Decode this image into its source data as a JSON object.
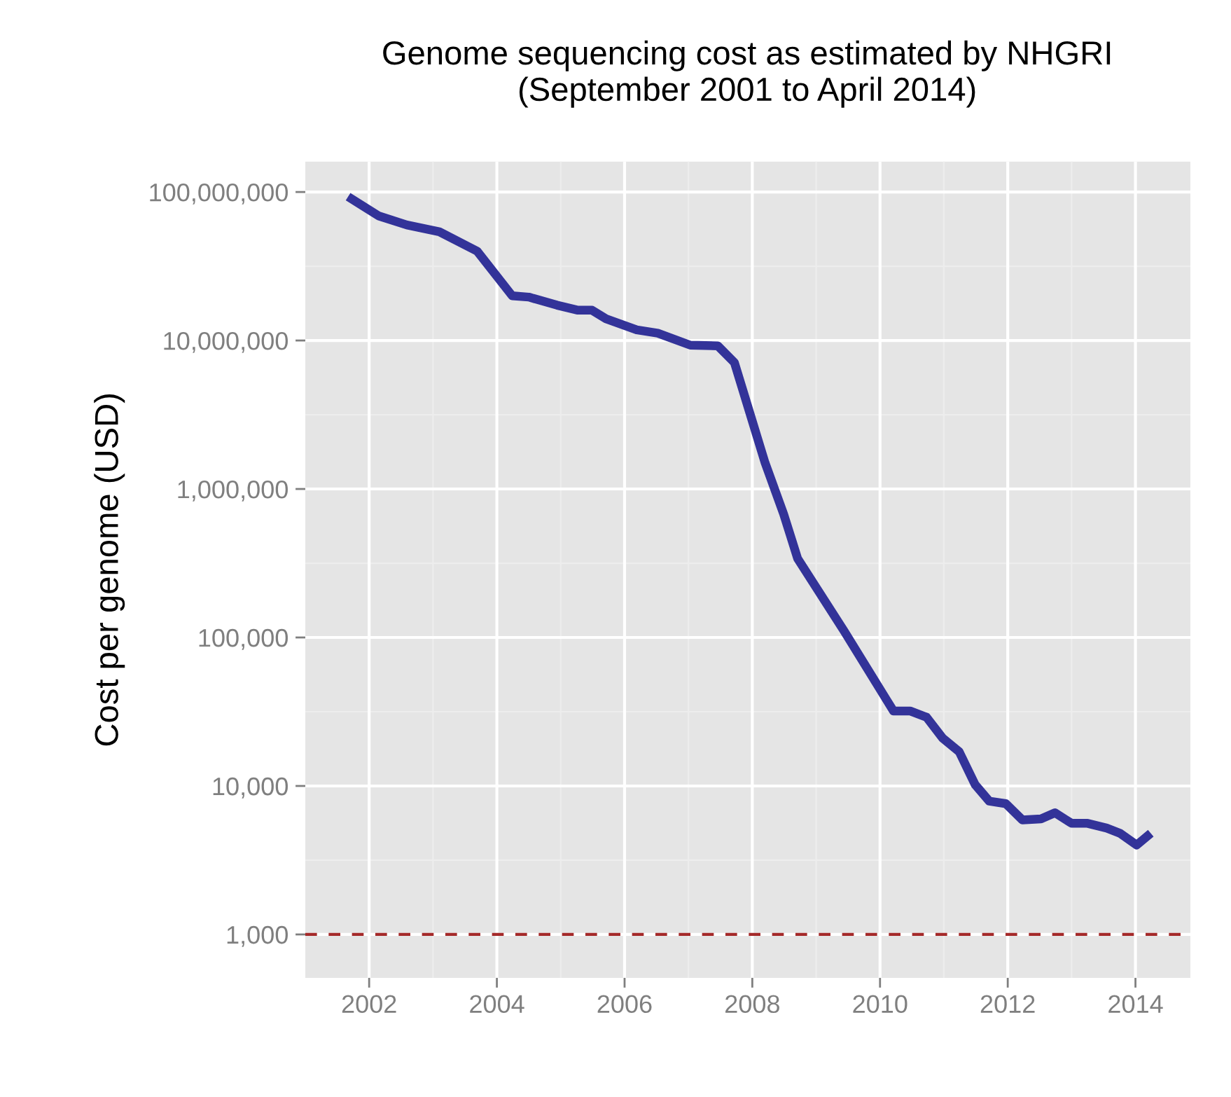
{
  "chart_data": {
    "type": "line",
    "title": "Genome sequencing cost as estimated by NHGRI",
    "subtitle": "(September 2001 to April 2014)",
    "ylabel": "Cost per genome (USD)",
    "x": [
      2001.67,
      2002.15,
      2002.59,
      2003.1,
      2003.69,
      2004.24,
      2004.5,
      2004.94,
      2005.27,
      2005.49,
      2005.71,
      2006.19,
      2006.52,
      2007.03,
      2007.46,
      2007.72,
      2008.2,
      2008.49,
      2008.71,
      2009.44,
      2010.21,
      2010.47,
      2010.73,
      2010.98,
      2011.24,
      2011.49,
      2011.71,
      2011.97,
      2012.23,
      2012.52,
      2012.74,
      2013.0,
      2013.25,
      2013.55,
      2013.76,
      2014.02,
      2014.24
    ],
    "series": [
      {
        "color": "#333399",
        "values": [
          93000000,
          69000000,
          60000000,
          54000000,
          40000000,
          20000000,
          19600000,
          17300000,
          16000000,
          16000000,
          14000000,
          11800000,
          11200000,
          9300000,
          9200000,
          7100000,
          1500000,
          680000,
          340000,
          110000,
          32000,
          32000,
          29000,
          21000,
          17000,
          10200,
          7900,
          7600,
          5900,
          6000,
          6600,
          5600,
          5600,
          5200,
          4800,
          4000,
          4800
        ]
      }
    ],
    "log": "y",
    "xlim": [
      2001.0,
      2014.86
    ],
    "ylim": [
      510,
      160000000
    ],
    "xticks": [
      2002,
      2004,
      2006,
      2008,
      2010,
      2012,
      2014
    ],
    "yticks": [
      {
        "value": 1000,
        "label": "1,000"
      },
      {
        "value": 10000,
        "label": "10,000"
      },
      {
        "value": 100000,
        "label": "100,000"
      },
      {
        "value": 1000000,
        "label": "1,000,000"
      },
      {
        "value": 10000000,
        "label": "10,000,000"
      },
      {
        "value": 100000000,
        "label": "100,000,000"
      }
    ],
    "grid": true,
    "line_style": "solid",
    "ref_lines": [
      {
        "axis": "y",
        "value": 1000,
        "color": "#a52a2a",
        "line_style": "dashed"
      }
    ]
  }
}
